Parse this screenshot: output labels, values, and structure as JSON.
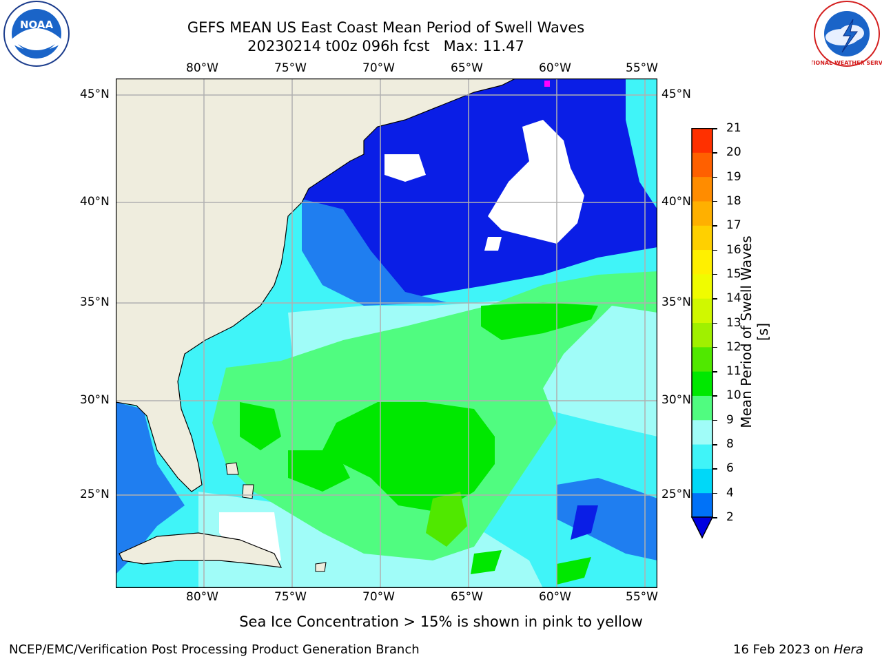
{
  "header": {
    "title_line1": "GEFS MEAN US East Coast Mean Period of Swell Waves",
    "title_line2": "20230214 t00z 096h fcst",
    "max_label": "Max: 11.47"
  },
  "logos": {
    "left_text": "NOAA",
    "right_text": "NATIONAL WEATHER SERVICE"
  },
  "axes": {
    "lon_ticks": [
      "80°W",
      "75°W",
      "70°W",
      "65°W",
      "60°W",
      "55°W"
    ],
    "lat_ticks": [
      "45°N",
      "40°N",
      "35°N",
      "30°N",
      "25°N"
    ]
  },
  "colorbar": {
    "label": "Mean Period of Swell Waves [s]",
    "ticks": [
      "2",
      "4",
      "6",
      "8",
      "9",
      "10",
      "11",
      "12",
      "13",
      "14",
      "15",
      "16",
      "17",
      "18",
      "19",
      "20",
      "21"
    ],
    "colors": [
      "#0072f8",
      "#00d8f8",
      "#40f4f8",
      "#a0fcf8",
      "#50fc80",
      "#00e800",
      "#50e800",
      "#a0f000",
      "#d0f800",
      "#f0fc00",
      "#fff000",
      "#ffd000",
      "#ffb000",
      "#ff8c00",
      "#ff6000",
      "#ff3000",
      "#ff0000"
    ],
    "extend_color": "#0000e0"
  },
  "map_colors": {
    "land": "#efedde",
    "ocean_base": "#40f4f8",
    "deep_blue": "#0a1ee6",
    "mid_blue": "#1f7ef0",
    "light_cyan": "#a0fcf8",
    "green_light": "#50fc80",
    "green": "#00e800",
    "green_yellow": "#50e800",
    "gridline": "#b0b0b0"
  },
  "annotation": "Sea Ice Concentration > 15% is shown in pink to yellow",
  "footer": {
    "left": "NCEP/EMC/Verification Post Processing Product Generation Branch",
    "right_prefix": "16 Feb 2023 on",
    "right_machine": "Hera"
  }
}
